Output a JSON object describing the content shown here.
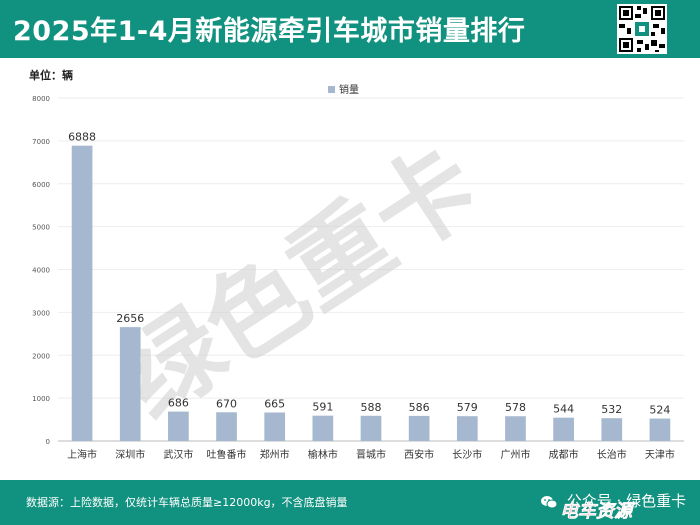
{
  "header": {
    "title": "2025年1-4月新能源牵引车城市销量排行"
  },
  "unit_label": "单位：辆",
  "watermark": "绿色重卡",
  "footer": {
    "note": "数据源：上险数据，仅统计车辆总质量≥12000kg，不含底盘销量",
    "brand": "公众号 · 绿色重卡",
    "corner_logo": "电车资源"
  },
  "colors": {
    "header_bg": "#11917f",
    "bar": "#a6b8d0",
    "text": "#333333"
  },
  "chart_data": {
    "type": "bar",
    "categories": [
      "上海市",
      "深圳市",
      "武汉市",
      "吐鲁番市",
      "郑州市",
      "榆林市",
      "晋城市",
      "西安市",
      "长沙市",
      "广州市",
      "成都市",
      "长治市",
      "天津市"
    ],
    "series": [
      {
        "name": "销量",
        "values": [
          6888,
          2656,
          686,
          670,
          665,
          591,
          588,
          586,
          579,
          578,
          544,
          532,
          524
        ]
      }
    ],
    "ylim": [
      0,
      8000
    ],
    "yticks": [
      "0",
      "1000",
      "2000",
      "3000",
      "4000",
      "5000",
      "6000",
      "7000",
      "8000"
    ],
    "legend_position": "top-center"
  }
}
